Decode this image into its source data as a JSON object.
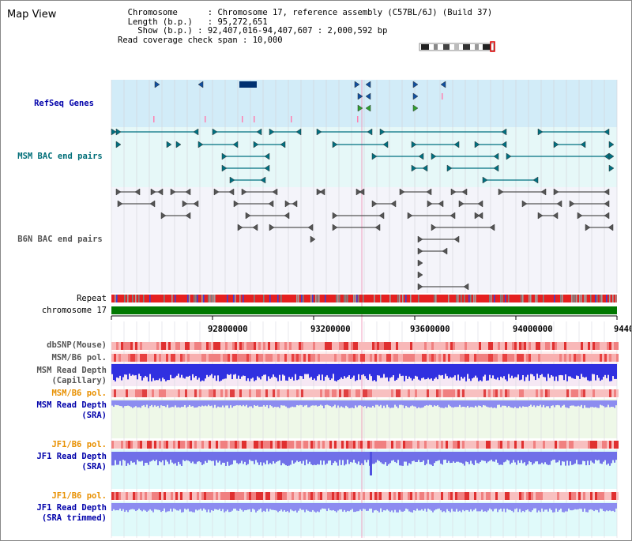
{
  "title": "Map View",
  "info": {
    "chromosome_key": "Chromosome",
    "chromosome_val": "Chromosome 17, reference assembly (C57BL/6J) (Build 37)",
    "length_key": "Length (b.p.)",
    "length_val": "95,272,651",
    "show_key": "Show (b.p.)",
    "show_val": "92,407,016-94,407,607 : 2,000,592 bp",
    "span_key": "Read coverage check span",
    "span_val": "10,000"
  },
  "tracks": {
    "refseq": "RefSeq Genes",
    "msm_bac": "MSM BAC end pairs",
    "b6n_bac": "B6N BAC end pairs",
    "repeat": "Repeat",
    "chromosome": "chromosome 17",
    "dbsnp": "dbSNP(Mouse)",
    "msm_b6_pol1": "MSM/B6 pol.",
    "msm_read_depth_cap": "MSM Read Depth\n(Capillary)",
    "msm_b6_pol2": "MSM/B6 pol.",
    "msm_read_depth_sra": "MSM Read Depth\n(SRA)",
    "jf1_b6_pol1": "JF1/B6 pol.",
    "jf1_read_depth_sra": "JF1 Read Depth\n(SRA)",
    "jf1_b6_pol2": "JF1/B6 pol.",
    "jf1_read_depth_trim": "JF1 Read Depth\n(SRA trimmed)"
  },
  "axis": {
    "ticks": [
      "92800000",
      "93200000",
      "93600000",
      "94000000",
      "9440"
    ]
  },
  "colors": {
    "refseq_bg": "#d2ecf8",
    "msm_bg": "#e6f8f8",
    "b6n_bg": "#f4f4fa",
    "refseq_label": "#0000aa",
    "msm_label": "#006e78",
    "b6n_label": "#555555",
    "orange_label": "#e89000",
    "blue_label": "#0000aa",
    "chromosome_bar": "#007800",
    "repeat_red": "#e52020",
    "depth_blue": "#3030e0",
    "depth_light": "#8c8cf0"
  }
}
